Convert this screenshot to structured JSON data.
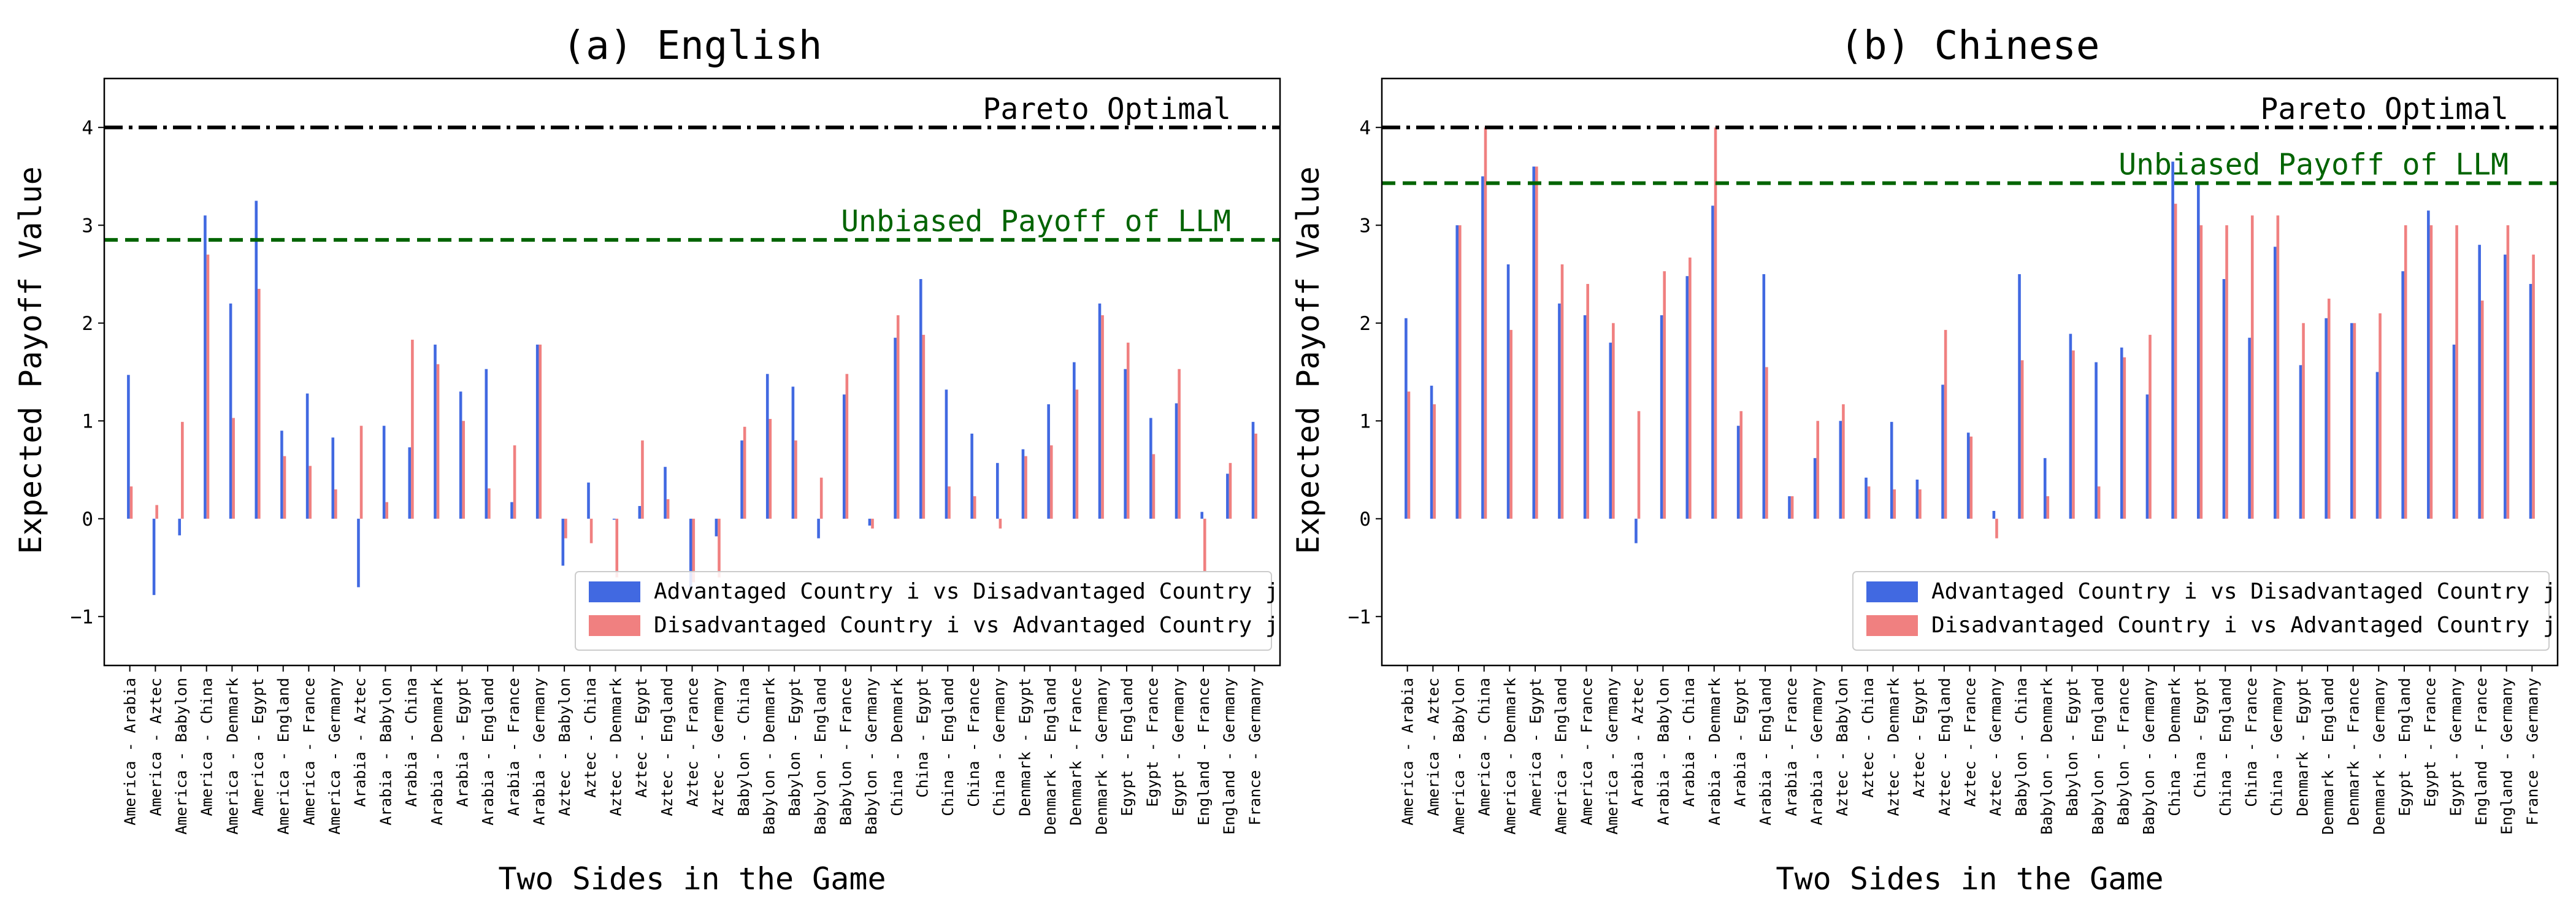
{
  "chart_data": [
    {
      "type": "bar",
      "title": "(a) English",
      "xlabel": "Two Sides in the Game",
      "ylabel": "Expected Payoff Value",
      "ylim": [
        -1.5,
        4.5
      ],
      "yticks": [
        -1,
        0,
        1,
        2,
        3,
        4
      ],
      "ytick_labels": [
        "−1",
        "0",
        "1",
        "2",
        "3",
        "4"
      ],
      "reference_lines": [
        {
          "label": "Pareto Optimal",
          "value": 4.0,
          "style": "dash-dot",
          "color": "#000000"
        },
        {
          "label": "Unbiased Payoff of LLM",
          "value": 2.85,
          "style": "dashed",
          "color": "#006400"
        }
      ],
      "legend_position": "lower right",
      "categories": [
        "America - Arabia",
        "America - Aztec",
        "America - Babylon",
        "America - China",
        "America - Denmark",
        "America - Egypt",
        "America - England",
        "America - France",
        "America - Germany",
        "Arabia - Aztec",
        "Arabia - Babylon",
        "Arabia - China",
        "Arabia - Denmark",
        "Arabia - Egypt",
        "Arabia - England",
        "Arabia - France",
        "Arabia - Germany",
        "Aztec - Babylon",
        "Aztec - China",
        "Aztec - Denmark",
        "Aztec - Egypt",
        "Aztec - England",
        "Aztec - France",
        "Aztec - Germany",
        "Babylon - China",
        "Babylon - Denmark",
        "Babylon - Egypt",
        "Babylon - England",
        "Babylon - France",
        "Babylon - Germany",
        "China - Denmark",
        "China - Egypt",
        "China - England",
        "China - France",
        "China - Germany",
        "Denmark - Egypt",
        "Denmark - England",
        "Denmark - France",
        "Denmark - Germany",
        "Egypt - England",
        "Egypt - France",
        "Egypt - Germany",
        "England - France",
        "England - Germany",
        "France - Germany"
      ],
      "series": [
        {
          "name": "Advantaged Country i vs Disadvantaged Country j",
          "color": "#4169e1",
          "values": [
            1.47,
            -0.78,
            -0.17,
            3.1,
            2.2,
            3.25,
            0.9,
            1.28,
            0.83,
            -0.7,
            0.95,
            0.73,
            1.78,
            1.3,
            1.53,
            0.17,
            1.78,
            -0.48,
            0.37,
            -0.01,
            0.13,
            0.53,
            -0.72,
            -0.18,
            0.8,
            1.48,
            1.35,
            -0.2,
            1.27,
            -0.07,
            1.85,
            2.45,
            1.32,
            0.87,
            0.57,
            0.71,
            1.17,
            1.6,
            2.2,
            1.53,
            1.03,
            1.18,
            0.07,
            0.46,
            0.99
          ]
        },
        {
          "name": "Disadvantaged Country i vs Advantaged Country j",
          "color": "#f08080",
          "values": [
            0.33,
            0.14,
            0.99,
            2.7,
            1.03,
            2.35,
            0.64,
            0.54,
            0.3,
            0.95,
            0.17,
            1.83,
            1.58,
            1.0,
            0.31,
            0.75,
            1.78,
            -0.2,
            -0.25,
            -0.6,
            0.8,
            0.2,
            -0.65,
            -0.6,
            0.94,
            1.02,
            0.8,
            0.42,
            1.48,
            -0.1,
            2.08,
            1.88,
            0.33,
            0.23,
            -0.1,
            0.64,
            0.75,
            1.32,
            2.08,
            1.8,
            0.66,
            1.53,
            -0.54,
            0.57,
            0.87
          ]
        }
      ]
    },
    {
      "type": "bar",
      "title": "(b) Chinese",
      "xlabel": "Two Sides in the Game",
      "ylabel": "Expected Payoff Value",
      "ylim": [
        -1.5,
        4.5
      ],
      "yticks": [
        -1,
        0,
        1,
        2,
        3,
        4
      ],
      "ytick_labels": [
        "−1",
        "0",
        "1",
        "2",
        "3",
        "4"
      ],
      "reference_lines": [
        {
          "label": "Pareto Optimal",
          "value": 4.0,
          "style": "dash-dot",
          "color": "#000000"
        },
        {
          "label": "Unbiased Payoff of LLM",
          "value": 3.43,
          "style": "dashed",
          "color": "#006400"
        }
      ],
      "legend_position": "lower right",
      "categories": [
        "America - Arabia",
        "America - Aztec",
        "America - Babylon",
        "America - China",
        "America - Denmark",
        "America - Egypt",
        "America - England",
        "America - France",
        "America - Germany",
        "Arabia - Aztec",
        "Arabia - Babylon",
        "Arabia - China",
        "Arabia - Denmark",
        "Arabia - Egypt",
        "Arabia - England",
        "Arabia - France",
        "Arabia - Germany",
        "Aztec - Babylon",
        "Aztec - China",
        "Aztec - Denmark",
        "Aztec - Egypt",
        "Aztec - England",
        "Aztec - France",
        "Aztec - Germany",
        "Babylon - China",
        "Babylon - Denmark",
        "Babylon - Egypt",
        "Babylon - England",
        "Babylon - France",
        "Babylon - Germany",
        "China - Denmark",
        "China - Egypt",
        "China - England",
        "China - France",
        "China - Germany",
        "Denmark - Egypt",
        "Denmark - England",
        "Denmark - France",
        "Denmark - Germany",
        "Egypt - England",
        "Egypt - France",
        "Egypt - Germany",
        "England - France",
        "England - Germany",
        "France - Germany"
      ],
      "series": [
        {
          "name": "Advantaged Country i vs Disadvantaged Country j",
          "color": "#4169e1",
          "values": [
            2.05,
            1.36,
            3.0,
            3.5,
            2.6,
            3.6,
            2.2,
            2.08,
            1.8,
            -0.25,
            2.08,
            2.48,
            3.2,
            0.95,
            2.5,
            0.23,
            0.62,
            1.0,
            0.42,
            0.99,
            0.4,
            1.37,
            0.88,
            0.08,
            2.5,
            0.62,
            1.89,
            1.6,
            1.75,
            1.27,
            3.65,
            3.45,
            2.45,
            1.85,
            2.78,
            1.57,
            2.05,
            2.0,
            1.5,
            2.53,
            3.15,
            1.78,
            2.8,
            2.7,
            2.4
          ]
        },
        {
          "name": "Disadvantaged Country i vs Advantaged Country j",
          "color": "#f08080",
          "values": [
            1.3,
            1.17,
            3.0,
            4.0,
            1.93,
            3.6,
            2.6,
            2.4,
            2.0,
            1.1,
            2.53,
            2.67,
            4.0,
            1.1,
            1.55,
            0.23,
            1.0,
            1.17,
            0.33,
            0.3,
            0.3,
            1.93,
            0.84,
            -0.2,
            1.62,
            0.23,
            1.72,
            0.33,
            1.65,
            1.88,
            3.22,
            3.0,
            3.0,
            3.1,
            3.1,
            2.0,
            2.25,
            2.0,
            2.1,
            3.0,
            3.0,
            3.0,
            2.23,
            3.0,
            2.7
          ]
        }
      ]
    }
  ]
}
